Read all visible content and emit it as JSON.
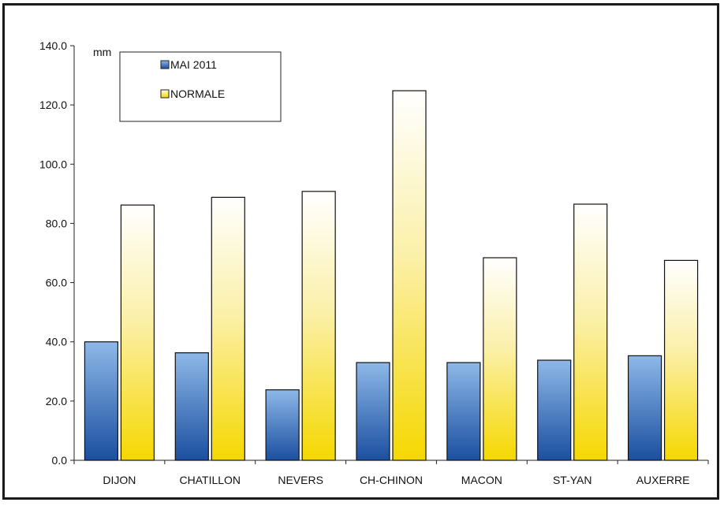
{
  "chart_data": {
    "type": "bar",
    "title": "",
    "xlabel": "",
    "ylabel": "mm",
    "ylim": [
      0,
      140
    ],
    "yticks": [
      "0.0",
      "20.0",
      "40.0",
      "60.0",
      "80.0",
      "100.0",
      "120.0",
      "140.0"
    ],
    "categories": [
      "DIJON",
      "CHATILLON",
      "NEVERS",
      "CH-CHINON",
      "MACON",
      "ST-YAN",
      "AUXERRE"
    ],
    "series": [
      {
        "name": "MAI 2011",
        "values": [
          40.0,
          36.3,
          23.8,
          33.0,
          33.0,
          33.8,
          35.3
        ],
        "color": "#2f6fc0"
      },
      {
        "name": "NORMALE",
        "values": [
          86.2,
          88.8,
          90.8,
          124.8,
          68.4,
          86.5,
          67.5
        ],
        "color": "#f5d800"
      }
    ],
    "legend_position": "top-left",
    "grid": false
  }
}
